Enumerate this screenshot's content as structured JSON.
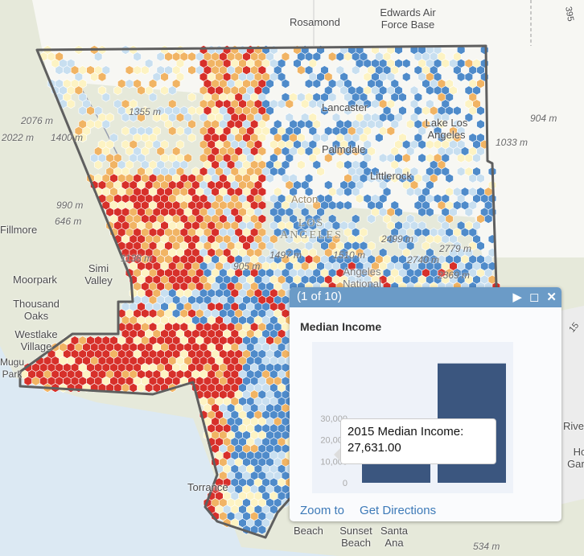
{
  "map": {
    "place_labels": [
      "Rosamond",
      "Edwards Air Force Base",
      "Fillmore",
      "Simi Valley",
      "Moorpark",
      "Thousand Oaks",
      "Westlake Village",
      "Mugu Park",
      "Lancaster",
      "Lake Los Angeles",
      "Palmdale",
      "Littlerock",
      "Acton",
      "LOS ANGELES",
      "Angeles National",
      "Torrance",
      "Beach",
      "Sunset Beach",
      "Santa Ana",
      "Riverside",
      "Home Gardens",
      "395",
      "15"
    ],
    "elevations": [
      "1355 m",
      "2076 m",
      "2022 m",
      "1400 m",
      "990 m",
      "646 m",
      "1138 m",
      "905 m",
      "1497 m",
      "1510 m",
      "2499 m",
      "2740 m",
      "2779 m",
      "2369 m",
      "904 m",
      "1033 m",
      "534 m"
    ],
    "colors": {
      "class1": "#d7302a",
      "class2": "#f1b464",
      "class3": "#fdf3c3",
      "class4": "#c8dff0",
      "class5": "#4f8bca",
      "boundary": "#5f5f5f"
    }
  },
  "popup": {
    "counter": "(1 of 10)",
    "title": "Median Income",
    "zoom_to": "Zoom to",
    "get_directions": "Get Directions",
    "tooltip_line1": "2015 Median Income:",
    "tooltip_line2": "27,631.00",
    "header_color": "#6b9bc7"
  },
  "chart_data": {
    "type": "bar",
    "categories": [
      "",
      ""
    ],
    "values": [
      27631,
      55500
    ],
    "yticks": [
      "0",
      "10,000",
      "20,000",
      "30,000"
    ],
    "ylim": [
      0,
      58000
    ],
    "bar_color": "#3b567f",
    "grid": false
  }
}
